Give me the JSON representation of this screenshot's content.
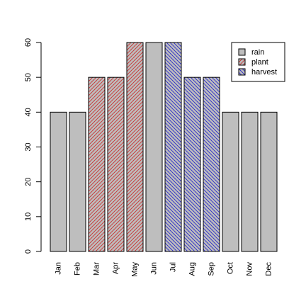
{
  "chart_data": {
    "type": "bar",
    "categories": [
      "Jan",
      "Feb",
      "Mar",
      "Apr",
      "May",
      "Jun",
      "Jul",
      "Aug",
      "Sep",
      "Oct",
      "Nov",
      "Dec"
    ],
    "values": [
      40,
      40,
      50,
      50,
      60,
      60,
      60,
      50,
      50,
      40,
      40,
      40
    ],
    "groups": [
      "rain",
      "rain",
      "plant",
      "plant",
      "plant",
      "rain",
      "harvest",
      "harvest",
      "harvest",
      "rain",
      "rain",
      "rain"
    ],
    "ylim": [
      0,
      60
    ],
    "yticks": [
      "0",
      "10",
      "20",
      "30",
      "40",
      "50",
      "60"
    ],
    "grid": false,
    "title": "",
    "xlabel": "",
    "ylabel": "",
    "legend": {
      "placement": "top-right",
      "entries": [
        {
          "key": "rain",
          "label": "rain",
          "fill": "#bebebe",
          "hatch": "none",
          "hatch_color": ""
        },
        {
          "key": "plant",
          "label": "plant",
          "fill": "#bebebe",
          "hatch": "diagonal-up",
          "hatch_color": "#c83232"
        },
        {
          "key": "harvest",
          "label": "harvest",
          "fill": "#bebebe",
          "hatch": "diagonal-down",
          "hatch_color": "#2828c8"
        }
      ]
    }
  }
}
